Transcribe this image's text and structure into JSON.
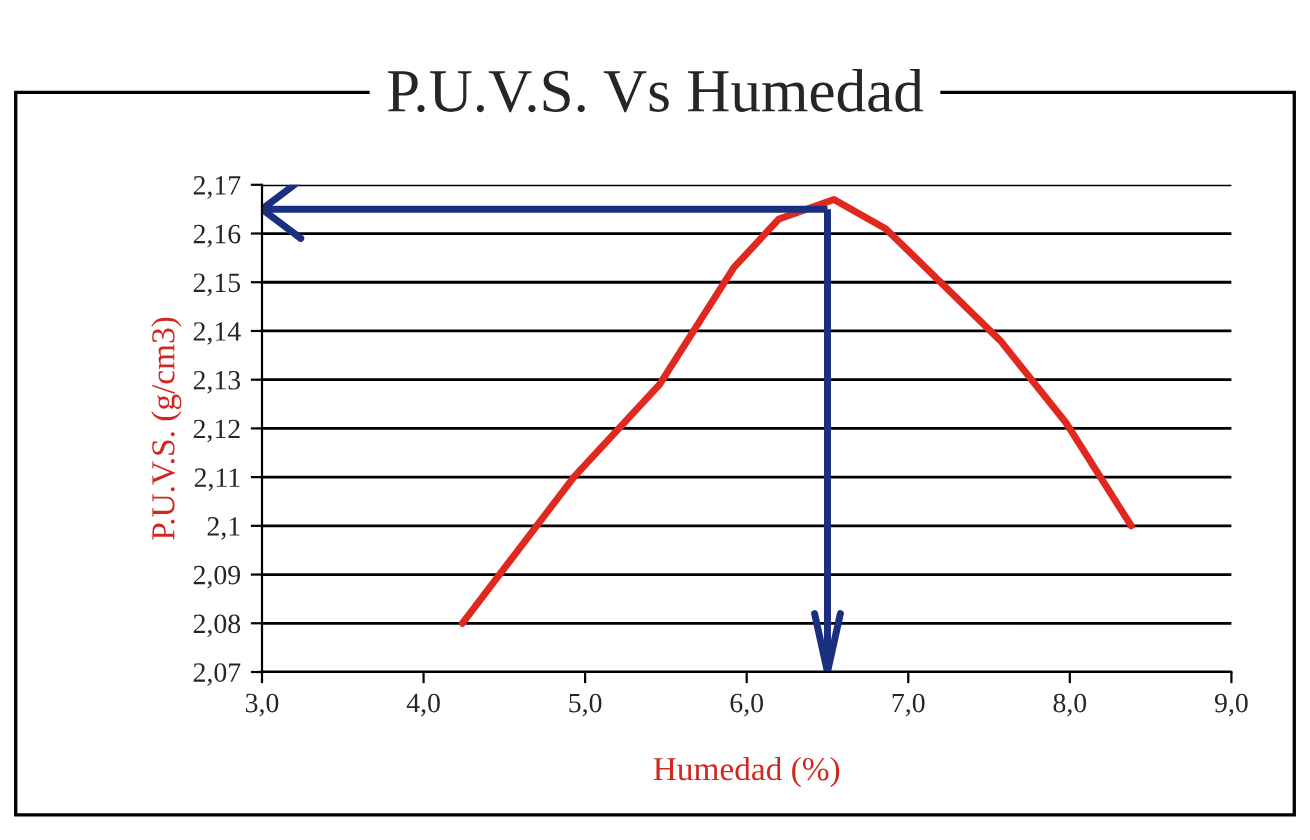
{
  "chart_data": {
    "type": "line",
    "title": "P.U.V.S. Vs Humedad",
    "xlabel": "Humedad (%)",
    "ylabel": "P.U.V.S. (g/cm3)",
    "series": [
      {
        "color": "#e0281e",
        "x": [
          4.24,
          4.93,
          5.46,
          5.92,
          6.2,
          6.54,
          6.86,
          7.2,
          7.57,
          7.98,
          8.38
        ],
        "values": [
          2.08,
          2.11,
          2.129,
          2.153,
          2.163,
          2.167,
          2.161,
          2.15,
          2.138,
          2.121,
          2.1
        ]
      }
    ],
    "xlim": [
      3.0,
      9.0
    ],
    "xticks": [
      {
        "value": 3,
        "label": "3,0"
      },
      {
        "value": 4,
        "label": "4,0"
      },
      {
        "value": 5,
        "label": "5,0"
      },
      {
        "value": 6,
        "label": "6,0"
      },
      {
        "value": 7,
        "label": "7,0"
      },
      {
        "value": 8,
        "label": "8,0"
      },
      {
        "value": 9,
        "label": "9,0"
      }
    ],
    "ylim": [
      2.07,
      2.17
    ],
    "yticks": [
      {
        "value": 2.07,
        "label": "2,07"
      },
      {
        "value": 2.08,
        "label": "2,08"
      },
      {
        "value": 2.09,
        "label": "2,09"
      },
      {
        "value": 2.1,
        "label": "2,1"
      },
      {
        "value": 2.11,
        "label": "2,11"
      },
      {
        "value": 2.12,
        "label": "2,12"
      },
      {
        "value": 2.13,
        "label": "2,13"
      },
      {
        "value": 2.14,
        "label": "2,14"
      },
      {
        "value": 2.15,
        "label": "2,15"
      },
      {
        "value": 2.16,
        "label": "2,16"
      },
      {
        "value": 2.17,
        "label": "2,17"
      }
    ],
    "grid": "y",
    "marker": "none",
    "line_style": "solid",
    "ref_lines": [
      {
        "axis": "x",
        "value": 6.5,
        "color": "#1a2f80"
      },
      {
        "axis": "y",
        "value": 2.165,
        "color": "#1a2f80"
      }
    ]
  }
}
